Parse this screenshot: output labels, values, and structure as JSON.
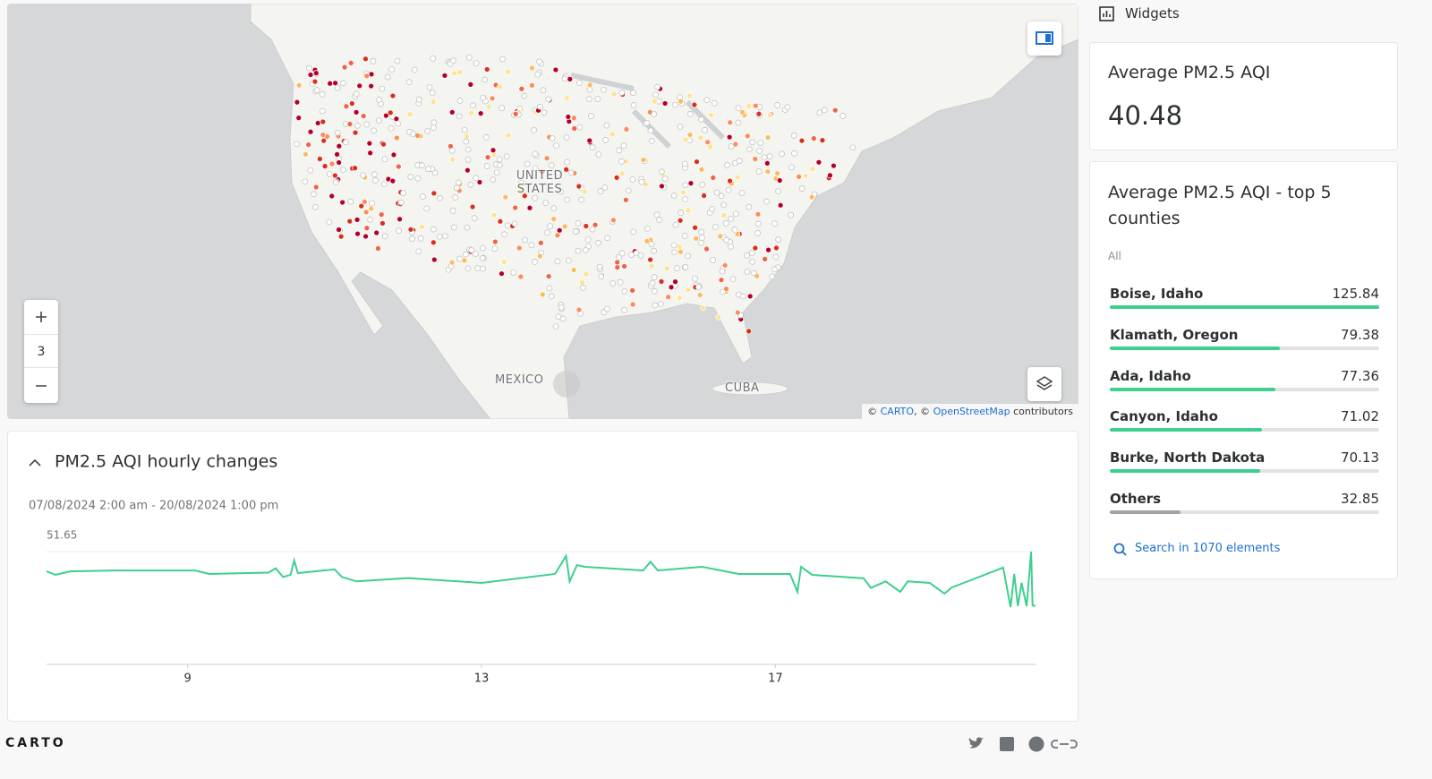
{
  "sidebar": {
    "title": "Widgets"
  },
  "map": {
    "labels": [
      "UNITED STATES",
      "MEXICO",
      "CUBA"
    ],
    "zoom": 3,
    "attribution": [
      "©",
      "CARTO",
      ", ©",
      "OpenStreetMap",
      "contributors"
    ],
    "point_colors": [
      "#b3002b",
      "#d7301f",
      "#ef6548",
      "#fc8d59",
      "#fdbb60",
      "#fee391",
      "#ffffff"
    ]
  },
  "kpi": {
    "title": "Average PM2.5 AQI",
    "value": 40.48
  },
  "category_widget": {
    "title": "Average PM2.5 AQI - top 5 counties",
    "filter": "All",
    "categories": [
      "Boise, Idaho",
      "Klamath, Oregon",
      "Ada, Idaho",
      "Canyon, Idaho",
      "Burke, North Dakota",
      "Others"
    ],
    "values": [
      125.84,
      79.38,
      77.36,
      71.02,
      70.13,
      32.85
    ],
    "color": "#3ecf8e",
    "others_color": "#a3a3a3",
    "search": "Search in 1070 elements"
  },
  "chart_data": {
    "type": "line",
    "title": "PM2.5 AQI hourly changes",
    "subtitle": "07/08/2024 2:00 am - 20/08/2024 1:00 pm",
    "x": [
      7.08,
      7.2,
      7.4,
      8.0,
      9.1,
      9.3,
      10.1,
      10.2,
      10.3,
      10.4,
      10.45,
      10.5,
      11.0,
      11.1,
      11.3,
      12.0,
      13.0,
      14.0,
      14.15,
      14.2,
      14.3,
      14.4,
      15.2,
      15.3,
      15.4,
      16.0,
      16.5,
      17.2,
      17.3,
      17.35,
      17.5,
      18.2,
      18.3,
      18.5,
      18.7,
      18.8,
      19.1,
      19.3,
      19.4,
      19.5,
      20.1,
      20.2,
      20.25,
      20.3,
      20.35,
      20.42,
      20.48,
      20.5,
      20.54
    ],
    "values": [
      42.6,
      41.0,
      42.6,
      43.0,
      43.0,
      41.4,
      42.0,
      44.0,
      40.0,
      41.0,
      47.6,
      41.8,
      43.5,
      40.0,
      38.0,
      39.5,
      37.3,
      41.4,
      49.6,
      38.0,
      45.5,
      44.7,
      43.0,
      47.0,
      43.0,
      44.7,
      41.4,
      41.4,
      33.2,
      44.7,
      41.0,
      39.4,
      35.0,
      38.0,
      33.2,
      38.0,
      37.3,
      32.4,
      35.2,
      36.5,
      44.3,
      26.2,
      41.4,
      26.7,
      37.3,
      26.7,
      51.65,
      27.0,
      26.7
    ],
    "color": "#3ecf8e",
    "xlim": [
      7.08,
      20.54
    ],
    "xticks": [
      9,
      13,
      17
    ],
    "ylim": [
      0,
      51.65
    ],
    "yticks": [
      51.65
    ]
  },
  "footer": {
    "logo": "CARTO"
  }
}
